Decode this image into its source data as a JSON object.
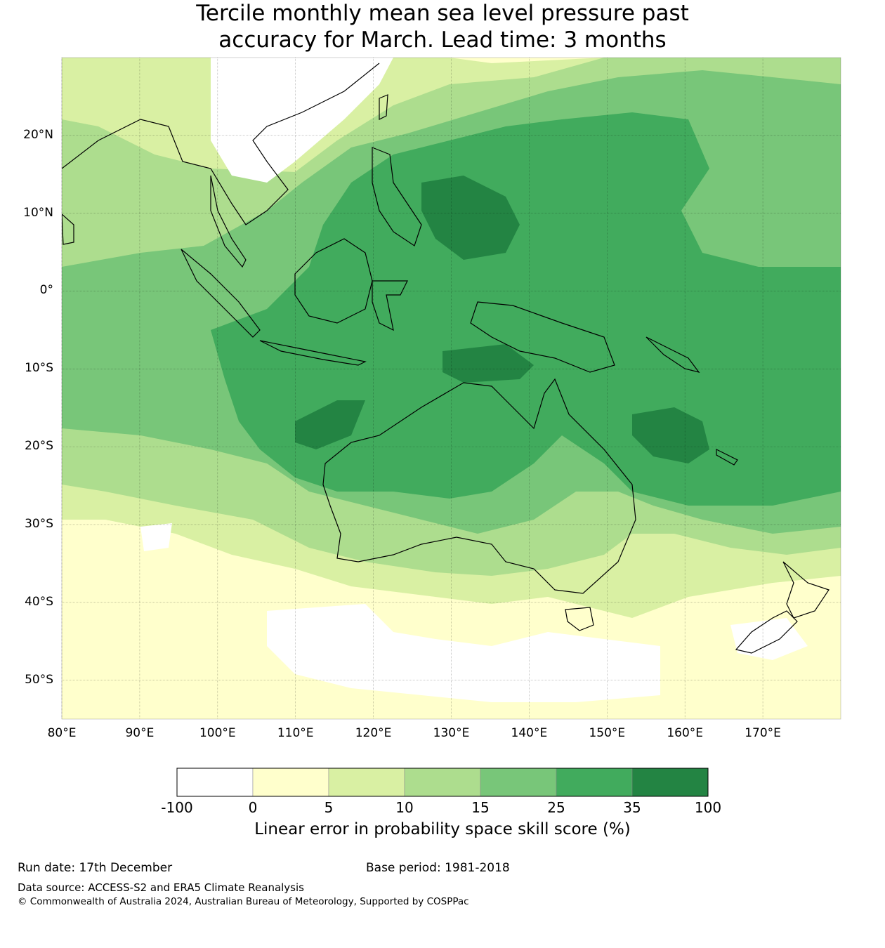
{
  "title": {
    "line1": "Tercile monthly mean sea level pressure past",
    "line2": "accuracy for March. Lead time: 3 months"
  },
  "map": {
    "lon_range": [
      80,
      180
    ],
    "lat_range": [
      -55,
      30
    ],
    "lat_ticks": [
      {
        "value": 20,
        "label": "20°N"
      },
      {
        "value": 10,
        "label": "10°N"
      },
      {
        "value": 0,
        "label": "0°"
      },
      {
        "value": -10,
        "label": "10°S"
      },
      {
        "value": -20,
        "label": "20°S"
      },
      {
        "value": -30,
        "label": "30°S"
      },
      {
        "value": -40,
        "label": "40°S"
      },
      {
        "value": -50,
        "label": "50°S"
      }
    ],
    "lon_ticks": [
      {
        "value": 80,
        "label": "80°E"
      },
      {
        "value": 90,
        "label": "90°E"
      },
      {
        "value": 100,
        "label": "100°E"
      },
      {
        "value": 110,
        "label": "110°E"
      },
      {
        "value": 120,
        "label": "120°E"
      },
      {
        "value": 130,
        "label": "130°E"
      },
      {
        "value": 140,
        "label": "140°E"
      },
      {
        "value": 150,
        "label": "150°E"
      },
      {
        "value": 160,
        "label": "160°E"
      },
      {
        "value": 170,
        "label": "170°E"
      }
    ],
    "grid": true
  },
  "colorbar": {
    "title": "Linear error in probability space skill score (%)",
    "boundaries": [
      "-100",
      "0",
      "5",
      "10",
      "15",
      "25",
      "35",
      "100"
    ],
    "colors": [
      "#ffffff",
      "#ffffcc",
      "#d9f0a3",
      "#addd8e",
      "#78c679",
      "#41ab5d",
      "#238443"
    ]
  },
  "footer": {
    "run_date": "Run date: 17th December",
    "base_period": "Base period: 1981-2018",
    "data_source": "Data source: ACCESS-S2 and ERA5 Climate Reanalysis",
    "copyright": "© Commonwealth of Australia 2024, Australian Bureau of Meteorology, Supported by COSPPac"
  }
}
